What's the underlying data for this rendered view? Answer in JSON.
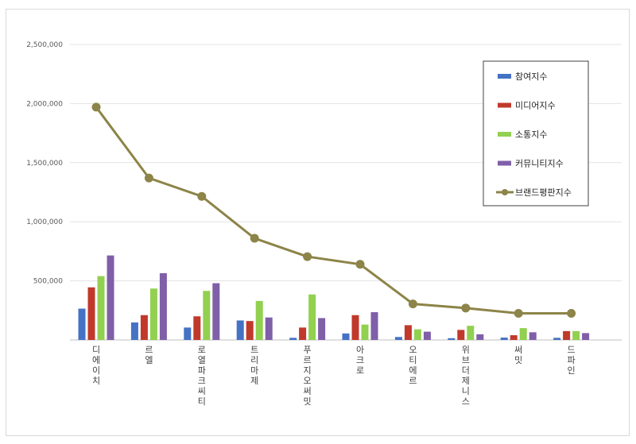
{
  "chart_data": {
    "type": "bar",
    "title": "",
    "xlabel": "",
    "ylabel": "",
    "ylim": [
      0,
      2500000
    ],
    "yticks": [
      0,
      500000,
      1000000,
      1500000,
      2000000,
      2500000
    ],
    "ytick_labels": [
      "",
      "500,000",
      "1,000,000",
      "1,500,000",
      "2,000,000",
      "2,500,000"
    ],
    "grid": true,
    "legend_position": "top-right",
    "categories": [
      "디에이치",
      "르엘",
      "로열파크씨티",
      "트리마제",
      "푸르지오써밋",
      "아크로",
      "오티에르",
      "위브더제니스",
      "써밋",
      "드파인"
    ],
    "series": [
      {
        "name": "참여지수",
        "type": "bar",
        "color": "#4472c4",
        "values": [
          265000,
          148000,
          105000,
          165000,
          18000,
          55000,
          25000,
          15000,
          20000,
          18000
        ]
      },
      {
        "name": "미디어지수",
        "type": "bar",
        "color": "#c0392b",
        "values": [
          445000,
          210000,
          200000,
          160000,
          105000,
          210000,
          125000,
          85000,
          40000,
          75000
        ]
      },
      {
        "name": "소통지수",
        "type": "bar",
        "color": "#92d050",
        "values": [
          540000,
          435000,
          415000,
          330000,
          385000,
          130000,
          90000,
          120000,
          100000,
          75000
        ]
      },
      {
        "name": "커뮤니티지수",
        "type": "bar",
        "color": "#7f5fa8",
        "values": [
          715000,
          565000,
          480000,
          190000,
          185000,
          235000,
          70000,
          48000,
          65000,
          58000
        ]
      },
      {
        "name": "브랜드평판지수",
        "type": "line",
        "color": "#8c8448",
        "values": [
          1970000,
          1370000,
          1215000,
          860000,
          705000,
          640000,
          305000,
          270000,
          225000,
          225000
        ]
      }
    ]
  }
}
